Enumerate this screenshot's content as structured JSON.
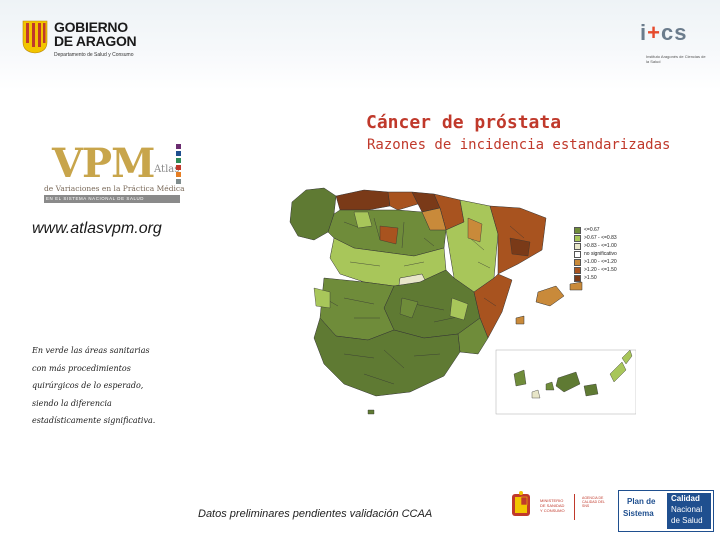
{
  "header": {
    "aragon_line1": "GOBIERNO",
    "aragon_line2": "DE ARAGON",
    "aragon_dept": "Departamento de Salud y Consumo",
    "ics_word_a": "i",
    "ics_word_b": "+",
    "ics_word_c": "cs",
    "ics_sub": "Instituto Aragonés de Ciencias de la Salud"
  },
  "title": "Cáncer de próstata",
  "subtitle": "Razones de incidencia estandarizadas",
  "vpm": {
    "letters": "VPM",
    "atlas": "Atlas",
    "desc": "de Variaciones en la Práctica Médica",
    "band": "EN EL SISTEMA NACIONAL DE SALUD",
    "squares": [
      "#6a2c70",
      "#1f4f8f",
      "#2e8b57",
      "#c0392b",
      "#e67e22",
      "#7f8c8d"
    ]
  },
  "url": "www.atlasvpm.org",
  "note": "En verde las áreas sanitarias con más procedimientos quirúrgicos de lo esperado, siendo la diferencia estadísticamente significativa.",
  "legend": [
    {
      "label": "<=0.67",
      "color": "#6f8c3a"
    },
    {
      "label": ">0.67 - <=0.83",
      "color": "#a8c65a"
    },
    {
      "label": ">0.83 - <=1.00",
      "color": "#e8e6c9"
    },
    {
      "label": "no significativo",
      "color": "#ffffff"
    },
    {
      "label": ">1.00 - <=1.20",
      "color": "#c98a3a"
    },
    {
      "label": ">1.20 - <=1.50",
      "color": "#a8531f"
    },
    {
      "label": ">1.50",
      "color": "#7a3a18"
    }
  ],
  "footer": {
    "note": "Datos preliminares pendientes validación CCAA",
    "ministry_a": "MINISTERIO DE SANIDAD Y CONSUMO",
    "ministry_b": "AGENCIA DE CALIDAD DEL SNS",
    "plan_l1": "Plan de",
    "plan_l2": "Sistema",
    "plan_r1": "Calidad",
    "plan_r2": "Nacional",
    "plan_r3": "de Salud"
  },
  "map_colors": {
    "dark_olive": "#5f7a33",
    "olive": "#6f8c3a",
    "light_green": "#a8c65a",
    "pale": "#e8e6c9",
    "tan": "#c98a3a",
    "brown": "#a8531f",
    "dark_brown": "#7a3a18"
  }
}
